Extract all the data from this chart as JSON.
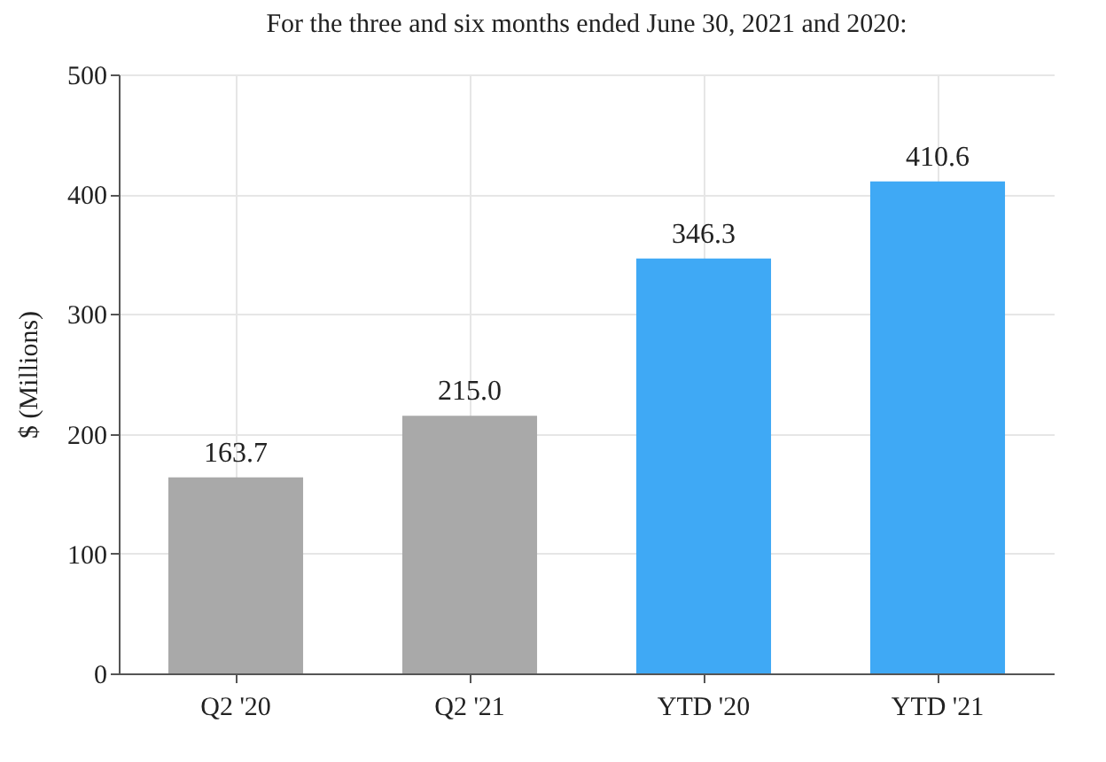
{
  "chart_data": {
    "type": "bar",
    "title": "For the three and six months ended June 30, 2021 and 2020:",
    "ylabel": "$ (Millions)",
    "categories": [
      "Q2 '20",
      "Q2 '21",
      "YTD '20",
      "YTD '21"
    ],
    "values": [
      163.7,
      215.0,
      346.3,
      410.6
    ],
    "colors": [
      "#a9a9a9",
      "#a9a9a9",
      "#3fa9f5",
      "#3fa9f5"
    ],
    "value_labels": [
      "163.7",
      "215.0",
      "346.3",
      "410.6"
    ],
    "ylim": [
      0,
      500
    ],
    "yticks": [
      0,
      100,
      200,
      300,
      400,
      500
    ],
    "grid": true
  }
}
